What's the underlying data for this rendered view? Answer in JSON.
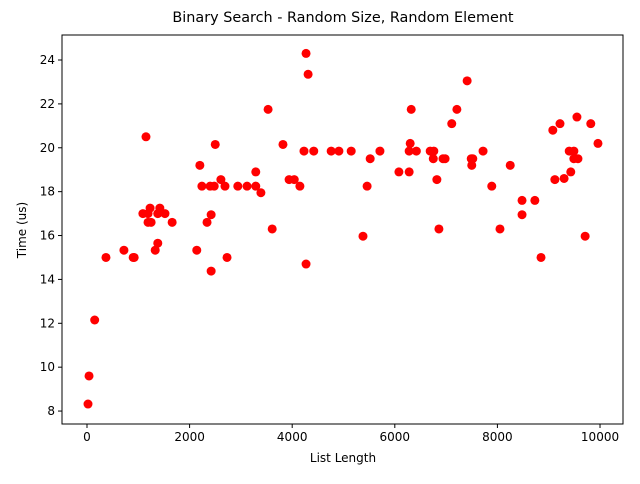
{
  "chart_data": {
    "type": "scatter",
    "title": "Binary Search - Random Size, Random Element",
    "xlabel": "List Length",
    "ylabel": "Time (us)",
    "color": "#ff0000",
    "x": [
      20,
      40,
      150,
      370,
      720,
      900,
      920,
      1090,
      1150,
      1190,
      1190,
      1230,
      1250,
      1330,
      1380,
      1380,
      1420,
      1520,
      1660,
      2140,
      2200,
      2240,
      2340,
      2400,
      2420,
      2420,
      2480,
      2500,
      2610,
      2690,
      2730,
      2940,
      3120,
      3290,
      3290,
      3390,
      3530,
      3610,
      3820,
      3940,
      4040,
      4150,
      4230,
      4270,
      4270,
      4310,
      4420,
      4760,
      4910,
      5150,
      5380,
      5460,
      5520,
      5710,
      6080,
      6280,
      6280,
      6300,
      6320,
      6420,
      6690,
      6750,
      6760,
      6820,
      6860,
      6940,
      6980,
      7110,
      7210,
      7410,
      7490,
      7500,
      7520,
      7720,
      7890,
      8050,
      8250,
      8480,
      8480,
      8730,
      8850,
      9080,
      9120,
      9220,
      9300,
      9400,
      9430,
      9490,
      9490,
      9550,
      9570,
      9710,
      9820,
      9960
    ],
    "values": [
      8.32,
      9.6,
      12.15,
      15.0,
      15.33,
      15.0,
      15.0,
      17.0,
      20.5,
      17.0,
      16.6,
      17.25,
      16.6,
      15.33,
      15.65,
      17.0,
      17.25,
      17.0,
      16.6,
      15.33,
      19.2,
      18.25,
      16.6,
      18.25,
      16.95,
      14.38,
      18.25,
      20.15,
      18.55,
      18.25,
      15.0,
      18.25,
      18.25,
      18.9,
      18.25,
      17.95,
      21.75,
      16.3,
      20.15,
      18.55,
      18.55,
      18.25,
      19.85,
      24.3,
      14.7,
      23.35,
      19.85,
      19.85,
      19.85,
      19.85,
      15.97,
      18.25,
      19.5,
      19.85,
      18.9,
      18.9,
      19.85,
      20.2,
      21.75,
      19.85,
      19.85,
      19.5,
      19.85,
      18.55,
      16.3,
      19.5,
      19.5,
      21.1,
      21.75,
      23.05,
      19.5,
      19.2,
      19.5,
      19.85,
      18.25,
      16.3,
      19.2,
      17.6,
      16.95,
      17.6,
      15.0,
      20.8,
      18.55,
      21.1,
      18.6,
      19.85,
      18.9,
      19.85,
      19.5,
      21.4,
      19.5,
      15.97,
      21.1,
      20.2
    ],
    "xlim": [
      -487,
      10448
    ],
    "ylim": [
      7.41,
      25.14
    ],
    "xticks": [
      0,
      2000,
      4000,
      6000,
      8000,
      10000
    ],
    "yticks": [
      8,
      10,
      12,
      14,
      16,
      18,
      20,
      22,
      24
    ]
  }
}
